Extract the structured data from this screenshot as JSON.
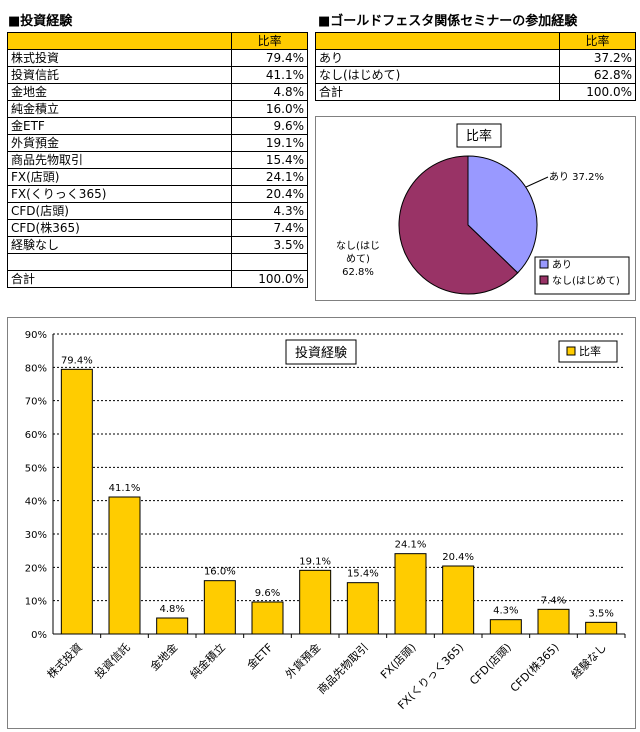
{
  "left_table": {
    "title": "■投資経験",
    "header": [
      "",
      "比率"
    ],
    "rows": [
      {
        "label": "株式投資",
        "value": "79.4%"
      },
      {
        "label": "投資信託",
        "value": "41.1%"
      },
      {
        "label": "金地金",
        "value": "4.8%"
      },
      {
        "label": "純金積立",
        "value": "16.0%"
      },
      {
        "label": "金ETF",
        "value": "9.6%"
      },
      {
        "label": "外貨預金",
        "value": "19.1%"
      },
      {
        "label": "商品先物取引",
        "value": "15.4%"
      },
      {
        "label": "FX(店頭)",
        "value": "24.1%"
      },
      {
        "label": "FX(くりっく365)",
        "value": "20.4%"
      },
      {
        "label": "CFD(店頭)",
        "value": "4.3%"
      },
      {
        "label": "CFD(株365)",
        "value": "7.4%"
      },
      {
        "label": "経験なし",
        "value": "3.5%"
      },
      {
        "label": "",
        "value": ""
      }
    ],
    "total": {
      "label": "合計",
      "value": "100.0%"
    }
  },
  "right_table": {
    "title": "■ゴールドフェスタ関係セミナーの参加経験",
    "header": [
      "",
      "比率"
    ],
    "rows": [
      {
        "label": "あり",
        "value": "37.2%"
      },
      {
        "label": "なし(はじめて)",
        "value": "62.8%"
      }
    ],
    "total": {
      "label": "合計",
      "value": "100.0%"
    }
  },
  "chart_data": [
    {
      "type": "pie",
      "title": "比率",
      "categories": [
        "あり",
        "なし(はじめて)"
      ],
      "values": [
        37.2,
        62.8
      ],
      "data_labels": [
        "あり 37.2%",
        "なし(はじめて)\n62.8%"
      ],
      "colors": [
        "#9999ff",
        "#993366"
      ],
      "legend_position": "bottom-right",
      "legend": [
        "あり",
        "なし(はじめて)"
      ]
    },
    {
      "type": "bar",
      "title": "投資経験",
      "categories": [
        "株式投資",
        "投資信託",
        "金地金",
        "純金積立",
        "金ETF",
        "外貨預金",
        "商品先物取引",
        "FX(店頭)",
        "FX(くりっく365)",
        "CFD(店頭)",
        "CFD(株365)",
        "経験なし"
      ],
      "series": [
        {
          "name": "比率",
          "values": [
            79.4,
            41.1,
            4.8,
            16.0,
            9.6,
            19.1,
            15.4,
            24.1,
            20.4,
            4.3,
            7.4,
            3.5
          ]
        }
      ],
      "data_labels": [
        "79.4%",
        "41.1%",
        "4.8%",
        "16.0%",
        "9.6%",
        "19.1%",
        "15.4%",
        "24.1%",
        "20.4%",
        "4.3%",
        "7.4%",
        "3.5%"
      ],
      "yticks": [
        "0%",
        "10%",
        "20%",
        "30%",
        "40%",
        "50%",
        "60%",
        "70%",
        "80%",
        "90%"
      ],
      "ylim": [
        0,
        90
      ],
      "grid": true,
      "legend_position": "top-right",
      "bar_color": "#ffcc00"
    }
  ]
}
